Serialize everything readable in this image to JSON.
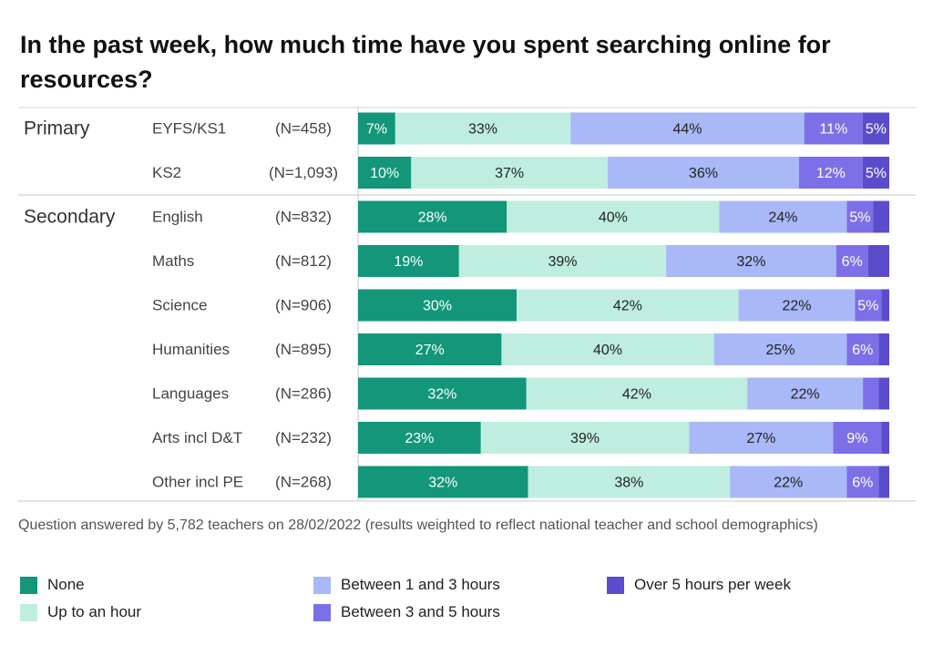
{
  "chart_data": {
    "type": "bar",
    "orientation": "horizontal-stacked-100",
    "title": "In the past week, how much time have you spent searching online for resources?",
    "series_names": [
      "None",
      "Up to an hour",
      "Between 1 and 3 hours",
      "Between 3 and 5 hours",
      "Over 5 hours per week"
    ],
    "colors": [
      "#13967a",
      "#bfeee0",
      "#a9b8f7",
      "#7c70e8",
      "#5b4ccc"
    ],
    "groups": [
      {
        "name": "Primary",
        "rows": [
          {
            "label": "EYFS/KS1",
            "n": "(N=458)",
            "values": [
              7,
              33,
              44,
              11,
              5
            ],
            "labels": [
              "7%",
              "33%",
              "44%",
              "11%",
              "5%"
            ]
          },
          {
            "label": "KS2",
            "n": "(N=1,093)",
            "values": [
              10,
              37,
              36,
              12,
              5
            ],
            "labels": [
              "10%",
              "37%",
              "36%",
              "12%",
              "5%"
            ]
          }
        ]
      },
      {
        "name": "Secondary",
        "rows": [
          {
            "label": "English",
            "n": "(N=832)",
            "values": [
              28,
              40,
              24,
              5,
              3
            ],
            "labels": [
              "28%",
              "40%",
              "24%",
              "5%",
              ""
            ]
          },
          {
            "label": "Maths",
            "n": "(N=812)",
            "values": [
              19,
              39,
              32,
              6,
              4
            ],
            "labels": [
              "19%",
              "39%",
              "32%",
              "6%",
              ""
            ]
          },
          {
            "label": "Science",
            "n": "(N=906)",
            "values": [
              30,
              42,
              22,
              5,
              1.5
            ],
            "labels": [
              "30%",
              "42%",
              "22%",
              "5%",
              ""
            ]
          },
          {
            "label": "Humanities",
            "n": "(N=895)",
            "values": [
              27,
              40,
              25,
              6,
              2
            ],
            "labels": [
              "27%",
              "40%",
              "25%",
              "6%",
              ""
            ]
          },
          {
            "label": "Languages",
            "n": "(N=286)",
            "values": [
              32,
              42,
              22,
              3,
              2
            ],
            "labels": [
              "32%",
              "42%",
              "22%",
              "",
              ""
            ]
          },
          {
            "label": "Arts incl D&T",
            "n": "(N=232)",
            "values": [
              23,
              39,
              27,
              9,
              1.5
            ],
            "labels": [
              "23%",
              "39%",
              "27%",
              "9%",
              ""
            ]
          },
          {
            "label": "Other incl PE",
            "n": "(N=268)",
            "values": [
              32,
              38,
              22,
              6,
              2
            ],
            "labels": [
              "32%",
              "38%",
              "22%",
              "6%",
              ""
            ]
          }
        ]
      }
    ],
    "xlim": [
      0,
      100
    ],
    "legend": "bottom"
  },
  "footnote": "Question answered by 5,782 teachers on 28/02/2022 (results weighted to reflect national teacher and school demographics)",
  "legend_items": [
    {
      "label": "None",
      "color": "#13967a"
    },
    {
      "label": "Up to an hour",
      "color": "#bfeee0"
    },
    {
      "label": "Between 1 and 3 hours",
      "color": "#a9b8f7"
    },
    {
      "label": "Between 3 and 5 hours",
      "color": "#7c70e8"
    },
    {
      "label": "Over 5 hours per week",
      "color": "#5b4ccc"
    }
  ]
}
